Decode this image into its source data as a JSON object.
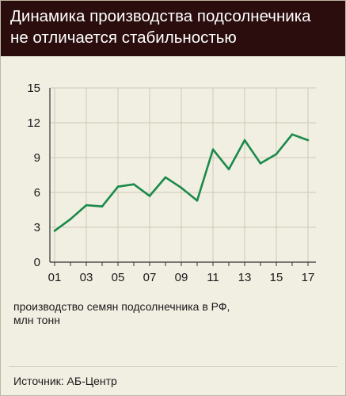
{
  "header": {
    "title_line1": "Динамика производства подсолнечника",
    "title_line2": "не отличается стабильностью"
  },
  "caption": {
    "line1": "производство семян подсолнечника в РФ,",
    "line2": "млн тонн"
  },
  "source": "Источник: АБ-Центр",
  "colors": {
    "header_bg": "#2b0d0d",
    "background": "#f1eee2",
    "line": "#1a8a4a",
    "grid": "#cfc9b5"
  },
  "chart_data": {
    "type": "line",
    "x": [
      2001,
      2002,
      2003,
      2004,
      2005,
      2006,
      2007,
      2008,
      2009,
      2010,
      2011,
      2012,
      2013,
      2014,
      2015,
      2016,
      2017
    ],
    "series": [
      {
        "values": [
          2.7,
          3.7,
          4.9,
          4.8,
          6.5,
          6.7,
          5.7,
          7.3,
          6.4,
          5.3,
          9.7,
          8.0,
          10.5,
          8.5,
          9.3,
          11.0,
          10.5
        ]
      }
    ],
    "xtick_values": [
      2001,
      2003,
      2005,
      2007,
      2009,
      2011,
      2013,
      2015,
      2017
    ],
    "xtick_labels": [
      "01",
      "03",
      "05",
      "07",
      "09",
      "11",
      "13",
      "15",
      "17"
    ],
    "ytick_values": [
      0,
      3,
      6,
      9,
      12,
      15
    ],
    "ytick_labels": [
      "0",
      "3",
      "6",
      "9",
      "12",
      "15"
    ],
    "ylim": [
      0,
      15
    ],
    "xlim": [
      2000.7,
      2017.5
    ],
    "grid": true
  }
}
